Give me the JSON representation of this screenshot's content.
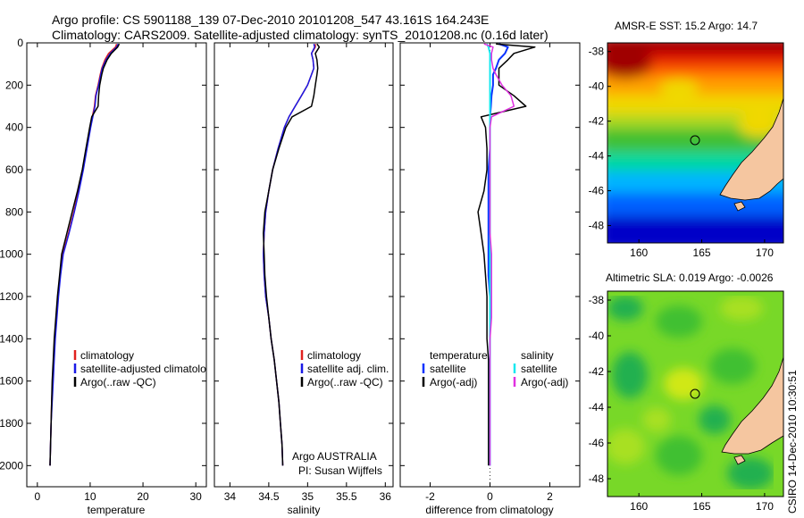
{
  "title": {
    "line1": "Argo profile: CS 5901188_139 07-Dec-2010 20101208_547 43.161S 164.243E",
    "line2": "Climatology: CARS2009. Satellite-adjusted climatology: synTS_20101208.nc (0.16d later)"
  },
  "credit": "CSIRO 14-Dec-2010 10:30:51",
  "float_info": [
    "Argo AUSTRALIA",
    "PI: Susan Wijffels"
  ],
  "colors": {
    "climatology": "#e0201e",
    "satellite": "#1a1ae6",
    "argo": "#000000",
    "temp_diff_satellite": "#0a32ff",
    "sal_diff_satellite": "#18e8f0",
    "sal_diff_argo": "#e030e0",
    "land": "#f5c6a0"
  },
  "chart_data": [
    {
      "type": "line",
      "id": "temperature",
      "xlabel": "temperature",
      "xlim": [
        -2,
        32
      ],
      "ylim": [
        0,
        2100
      ],
      "y_reversed": true,
      "xticks": [
        0,
        10,
        20,
        30
      ],
      "yticks": [
        0,
        200,
        400,
        600,
        800,
        1000,
        1200,
        1400,
        1600,
        1800,
        2000
      ],
      "legend": [
        "climatology",
        "satellite-adjusted climatolo",
        "Argo(..raw -QC)"
      ],
      "depth": [
        5,
        20,
        50,
        80,
        120,
        150,
        200,
        250,
        300,
        350,
        400,
        500,
        600,
        700,
        800,
        900,
        1000,
        1100,
        1200,
        1300,
        1400,
        1500,
        1600,
        1700,
        1800,
        1900,
        2000
      ],
      "series": [
        {
          "name": "climatology",
          "values": [
            15.0,
            14.8,
            13.5,
            12.8,
            12.2,
            11.9,
            11.5,
            11.0,
            10.8,
            10.4,
            10.0,
            9.3,
            8.6,
            7.8,
            6.9,
            5.9,
            4.8,
            4.3,
            3.9,
            3.6,
            3.3,
            3.1,
            2.9,
            2.7,
            2.6,
            2.5,
            2.4
          ]
        },
        {
          "name": "satellite-adjusted climatolo",
          "values": [
            15.3,
            15.0,
            13.8,
            13.0,
            12.3,
            12.0,
            11.6,
            11.1,
            10.9,
            10.5,
            10.1,
            9.4,
            8.7,
            7.9,
            7.0,
            6.0,
            4.9,
            4.4,
            4.0,
            3.7,
            3.4,
            3.2,
            3.0,
            2.8,
            2.6,
            2.5,
            2.4
          ]
        },
        {
          "name": "Argo(..raw -QC)",
          "values": [
            15.5,
            15.2,
            14.0,
            13.2,
            12.5,
            12.2,
            11.8,
            11.6,
            11.5,
            10.3,
            9.9,
            9.2,
            8.5,
            7.6,
            6.6,
            5.6,
            4.6,
            4.2,
            3.8,
            3.5,
            3.2,
            3.0,
            2.8,
            2.7,
            2.6,
            2.5,
            2.4
          ]
        }
      ]
    },
    {
      "type": "line",
      "id": "salinity",
      "xlabel": "salinity",
      "xlim": [
        33.8,
        36.1
      ],
      "ylim": [
        0,
        2100
      ],
      "y_reversed": true,
      "xticks": [
        34,
        34.5,
        35,
        35.5,
        36
      ],
      "legend": [
        "climatology",
        "satellite adj. clim.",
        "Argo(..raw -QC)"
      ],
      "depth": [
        5,
        20,
        50,
        80,
        120,
        150,
        200,
        250,
        300,
        350,
        400,
        500,
        600,
        700,
        800,
        900,
        1000,
        1100,
        1200,
        1300,
        1400,
        1500,
        1600,
        1700,
        1800,
        1900,
        2000
      ],
      "series": [
        {
          "name": "climatology",
          "values": [
            35.1,
            35.1,
            35.05,
            35.07,
            35.08,
            35.05,
            35.0,
            34.92,
            34.84,
            34.76,
            34.7,
            34.62,
            34.55,
            34.5,
            34.46,
            34.44,
            34.43,
            34.44,
            34.46,
            34.5,
            34.53,
            34.57,
            34.6,
            34.63,
            34.65,
            34.67,
            34.68
          ]
        },
        {
          "name": "satellite adj. clim.",
          "values": [
            35.08,
            35.09,
            35.05,
            35.07,
            35.08,
            35.05,
            35.0,
            34.92,
            34.84,
            34.76,
            34.7,
            34.62,
            34.55,
            34.5,
            34.46,
            34.44,
            34.43,
            34.44,
            34.46,
            34.5,
            34.53,
            34.57,
            34.6,
            34.63,
            34.65,
            34.67,
            34.68
          ]
        },
        {
          "name": "Argo(..raw -QC)",
          "values": [
            35.12,
            35.15,
            35.1,
            35.12,
            35.13,
            35.12,
            35.1,
            35.08,
            35.05,
            34.8,
            34.72,
            34.63,
            34.55,
            34.5,
            34.45,
            34.43,
            34.44,
            34.45,
            34.47,
            34.5,
            34.53,
            34.57,
            34.6,
            34.63,
            34.65,
            34.67,
            34.68
          ]
        }
      ]
    },
    {
      "type": "line",
      "id": "difference",
      "xlabel": "difference from climatology",
      "xlim": [
        -3,
        3
      ],
      "ylim": [
        0,
        2100
      ],
      "y_reversed": true,
      "xticks": [
        -2,
        0,
        2
      ],
      "legend_groups": [
        {
          "header": "temperature",
          "items": [
            "satellite",
            "Argo(-adj)"
          ]
        },
        {
          "header": "salinity",
          "items": [
            "satellite",
            "Argo(-adj)"
          ]
        }
      ],
      "depth": [
        5,
        20,
        50,
        80,
        120,
        150,
        200,
        250,
        300,
        350,
        400,
        500,
        600,
        700,
        800,
        900,
        1000,
        1100,
        1200,
        1300,
        1400,
        1500,
        1600,
        1700,
        1800,
        1900,
        2000
      ],
      "series": [
        {
          "name": "temperature satellite",
          "values": [
            0.3,
            0.6,
            0.5,
            0.3,
            0.2,
            0.1,
            0.1,
            0.05,
            0.03,
            0.0,
            0.0,
            0.0,
            -0.05,
            -0.05,
            -0.05,
            -0.05,
            -0.05,
            -0.05,
            0.0,
            0.0,
            0.0,
            0.0,
            0.0,
            0.0,
            0.0,
            0.0,
            0.0
          ]
        },
        {
          "name": "temperature Argo(-adj)",
          "values": [
            0.2,
            1.5,
            0.8,
            0.6,
            0.3,
            0.3,
            0.3,
            0.8,
            1.2,
            -0.3,
            -0.15,
            -0.1,
            -0.1,
            -0.2,
            -0.4,
            -0.3,
            -0.2,
            -0.15,
            -0.1,
            -0.1,
            -0.1,
            -0.05,
            -0.05,
            -0.05,
            -0.05,
            -0.05,
            -0.05
          ]
        },
        {
          "name": "salinity satellite",
          "values": [
            -0.1,
            -0.05,
            0.0,
            0.0,
            0.0,
            0.0,
            0.0,
            0.0,
            0.0,
            0.0,
            0.0,
            0.0,
            0.0,
            0.0,
            0.0,
            0.0,
            0.0,
            0.0,
            0.0,
            0.0,
            0.0,
            0.0,
            0.0,
            0.0,
            0.0,
            0.0,
            0.0
          ]
        },
        {
          "name": "salinity Argo(-adj)",
          "values": [
            -0.2,
            0.1,
            0.05,
            0.05,
            0.1,
            0.2,
            0.4,
            0.7,
            0.8,
            0.05,
            0.0,
            0.0,
            0.0,
            0.0,
            0.0,
            0.0,
            0.05,
            0.05,
            0.05,
            0.05,
            0.0,
            0.0,
            0.0,
            0.0,
            0.0,
            0.0,
            0.0
          ]
        }
      ]
    },
    {
      "type": "heatmap",
      "id": "sst-map",
      "title": "AMSR-E SST: 15.2  Argo: 14.7",
      "xlim": [
        157.5,
        171.5
      ],
      "ylim": [
        -49,
        -37.5
      ],
      "xticks": [
        160,
        165,
        170
      ],
      "yticks": [
        -38,
        -40,
        -42,
        -44,
        -46,
        -48
      ],
      "float_position": {
        "lon": 164.243,
        "lat": -43.161
      },
      "colors": [
        "#0000c8",
        "#0060ff",
        "#00b4ff",
        "#00d8a0",
        "#40c030",
        "#a8d820",
        "#f0d800",
        "#ffa000",
        "#ff6000",
        "#e01000",
        "#a00000"
      ]
    },
    {
      "type": "heatmap",
      "id": "sla-map",
      "title": "Altimetric SLA: 0.019  Argo: -0.0026",
      "xlim": [
        157.5,
        171.5
      ],
      "ylim": [
        -49,
        -37.5
      ],
      "xticks": [
        160,
        165,
        170
      ],
      "yticks": [
        -38,
        -40,
        -42,
        -44,
        -46,
        -48
      ],
      "float_position": {
        "lon": 164.243,
        "lat": -43.161
      },
      "colors": [
        "#20b050",
        "#40c030",
        "#78d828",
        "#a8e020",
        "#d0e818"
      ]
    }
  ]
}
